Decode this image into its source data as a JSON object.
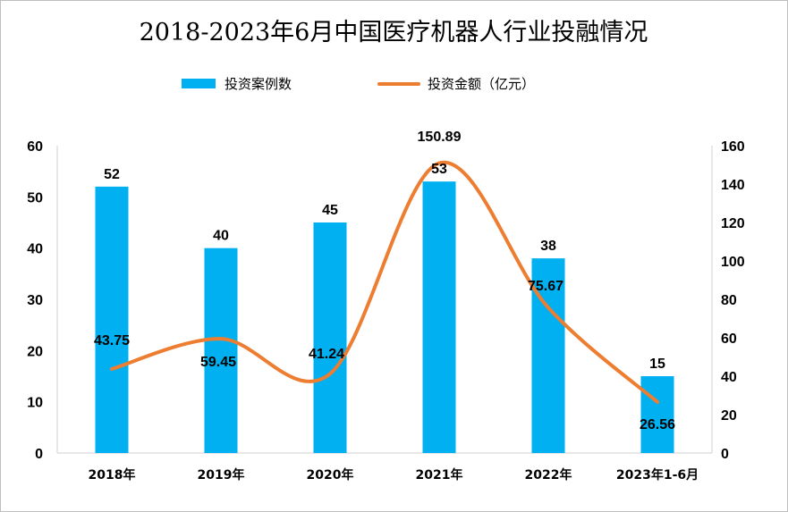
{
  "chart_data": {
    "type": "bar",
    "title": "2018-2023年6月中国医疗机器人行业投融情况",
    "categories": [
      "2018年",
      "2019年",
      "2020年",
      "2021年",
      "2022年",
      "2023年1-6月"
    ],
    "series": [
      {
        "name": "投资案例数",
        "type": "bar",
        "axis": "left",
        "values": [
          52,
          40,
          45,
          53,
          38,
          15
        ],
        "color": "#00B0F0"
      },
      {
        "name": "投资金额（亿元）",
        "type": "line",
        "smooth": true,
        "axis": "right",
        "values": [
          43.75,
          59.45,
          41.24,
          150.89,
          75.67,
          26.56
        ],
        "color": "#ED7D31"
      }
    ],
    "y_left": {
      "min": 0,
      "max": 60,
      "step": 10
    },
    "y_right": {
      "min": 0,
      "max": 160,
      "step": 20
    },
    "grid": false,
    "legend": "top-center"
  }
}
